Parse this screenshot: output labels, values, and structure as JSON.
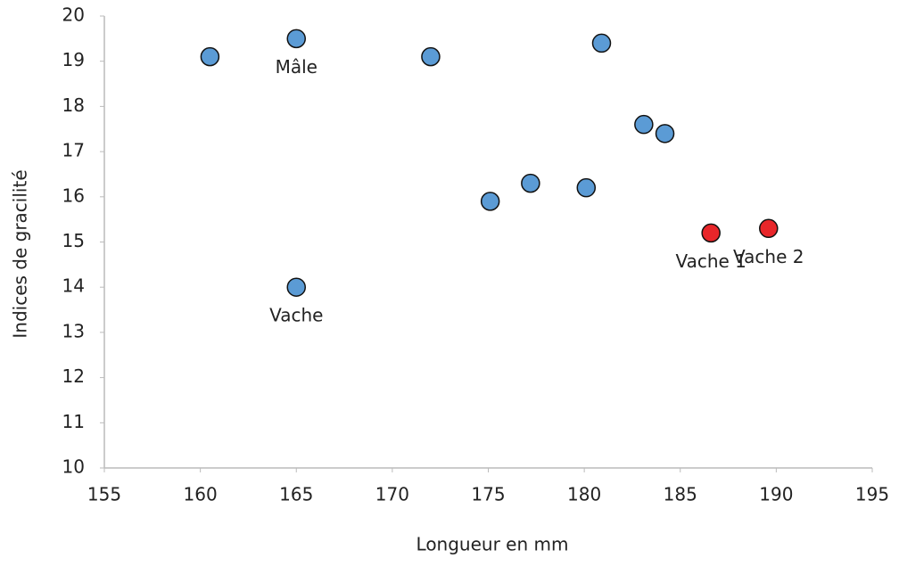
{
  "chart_data": {
    "type": "scatter",
    "x_label": "Longueur en mm",
    "y_label": "Indices de gracilité",
    "xlim": [
      155,
      195
    ],
    "xticks": [
      155,
      160,
      165,
      170,
      175,
      180,
      185,
      190,
      195
    ],
    "ylim": [
      10,
      20
    ],
    "yticks": [
      10,
      11,
      12,
      13,
      14,
      15,
      16,
      17,
      18,
      19,
      20
    ],
    "grid": false,
    "series": [
      {
        "color": "#5b9bd5",
        "x": [
          160.5,
          165,
          172,
          180.9,
          183.1,
          184.2,
          177.2,
          180.1,
          175.1,
          165
        ],
        "values": [
          19.1,
          19.5,
          19.1,
          19.4,
          17.6,
          17.4,
          16.3,
          16.2,
          15.9,
          14.0
        ],
        "labels": [
          null,
          "Mâle",
          null,
          null,
          null,
          null,
          null,
          null,
          null,
          "Vache"
        ]
      },
      {
        "color": "#e8262a",
        "x": [
          186.6,
          189.6
        ],
        "values": [
          15.2,
          15.3
        ],
        "labels": [
          "Vache 1",
          "Vache 2"
        ]
      }
    ]
  }
}
